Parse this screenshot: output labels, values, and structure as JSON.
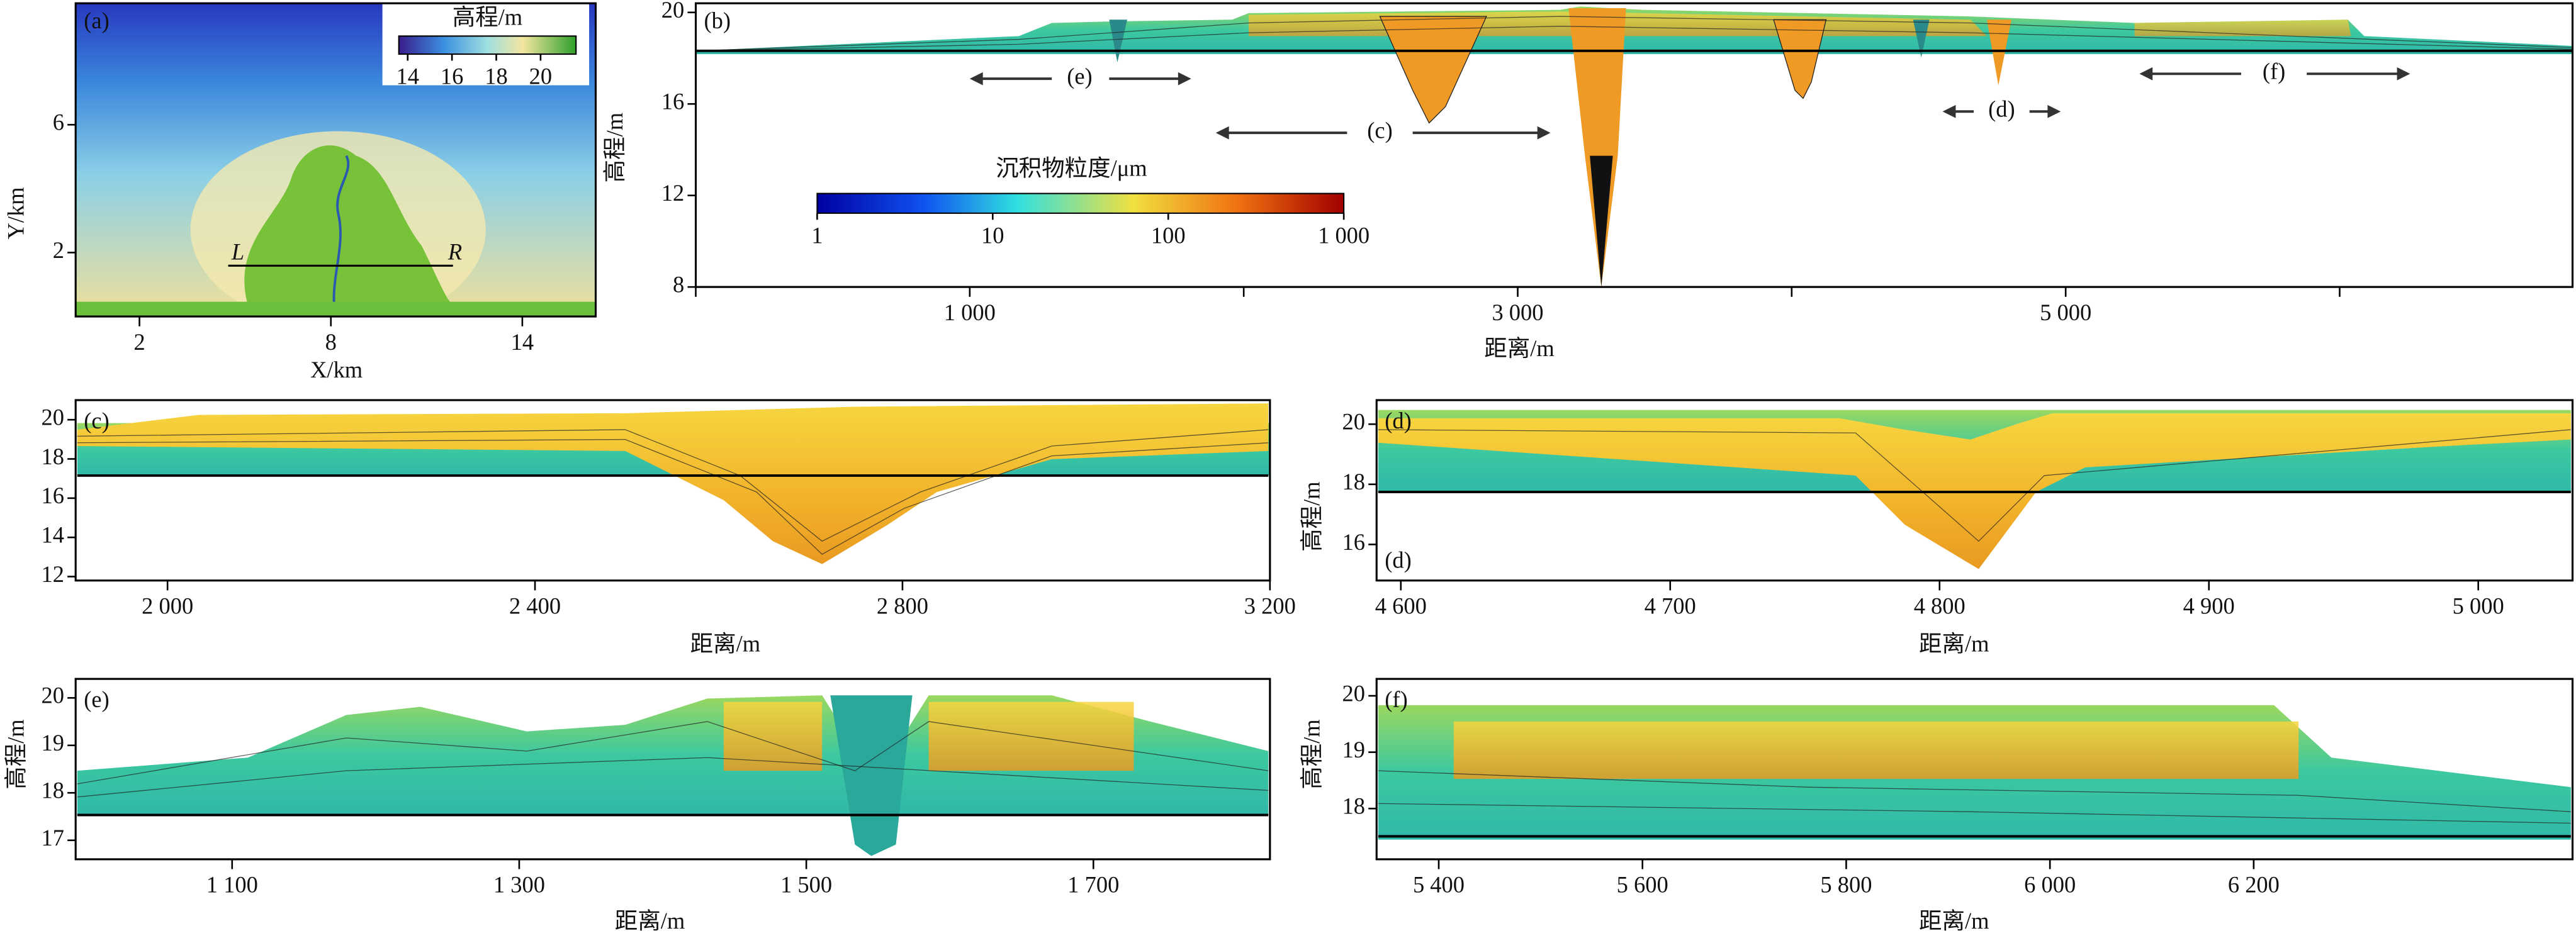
{
  "chart_data": [
    {
      "type": "map",
      "panel_label": "(a)",
      "xlabel": "X/km",
      "ylabel": "Y/km",
      "xlim": [
        0,
        16.3
      ],
      "ylim": [
        0,
        9.8
      ],
      "xticks": [
        2,
        8,
        14
      ],
      "yticks": [
        2,
        6
      ],
      "colorbar": {
        "title": "高程/m",
        "lim": [
          13.6,
          21.6
        ],
        "ticks": [
          14,
          16,
          18,
          20
        ]
      },
      "annotations": [
        "L",
        "R"
      ]
    },
    {
      "type": "section",
      "panel_label": "(b)",
      "xlabel": "距离/m",
      "ylabel": "高程/m",
      "xlim": [
        0,
        6850
      ],
      "ylim": [
        8,
        20.4
      ],
      "xticks": [
        {
          "value": 1000,
          "label": "1 000"
        },
        {
          "value": 3000,
          "label": "3 000"
        },
        {
          "value": 5000,
          "label": "5 000"
        }
      ],
      "xminorticks": [
        0,
        2000,
        4000,
        6000
      ],
      "yticks": [
        8,
        12,
        16,
        20
      ],
      "colorbar": {
        "title": "沉积物粒度/μm",
        "log": true,
        "lim": [
          1,
          1000
        ],
        "ticks": [
          1,
          10,
          100,
          {
            "value": 1000,
            "label": "1 000"
          }
        ]
      },
      "annotations": [
        "(e)",
        "(c)",
        "(d)",
        "(f)"
      ]
    },
    {
      "type": "section",
      "panel_label": "(c)",
      "xlabel": "距离/m",
      "xlim": [
        1900,
        3200
      ],
      "ylim": [
        11.8,
        21
      ],
      "xticks": [
        {
          "value": 2000,
          "label": "2 000"
        },
        {
          "value": 2400,
          "label": "2 400"
        },
        {
          "value": 2800,
          "label": "2 800"
        },
        {
          "value": 3200,
          "label": "3 200"
        }
      ],
      "yticks": [
        12,
        14,
        16,
        18,
        20
      ]
    },
    {
      "type": "section",
      "panel_label": "(d)",
      "xlabel": "距离/m",
      "ylabel": "高程/m",
      "xlim": [
        4591,
        5035
      ],
      "ylim": [
        14.8,
        20.8
      ],
      "xticks": [
        {
          "value": 4600,
          "label": "4 600"
        },
        {
          "value": 4700,
          "label": "4 700"
        },
        {
          "value": 4800,
          "label": "4 800"
        },
        {
          "value": 4900,
          "label": "4 900"
        },
        {
          "value": 5000,
          "label": "5 000"
        }
      ],
      "yticks": [
        16,
        18,
        20
      ],
      "annotations": [
        "(d)"
      ]
    },
    {
      "type": "section",
      "panel_label": "(e)",
      "xlabel": "距离/m",
      "ylabel": "高程/m",
      "xlim": [
        991,
        1823
      ],
      "ylim": [
        16.6,
        20.4
      ],
      "xticks": [
        {
          "value": 1100,
          "label": "1 100"
        },
        {
          "value": 1300,
          "label": "1 300"
        },
        {
          "value": 1500,
          "label": "1 500"
        },
        {
          "value": 1700,
          "label": "1 700"
        }
      ],
      "yticks": [
        17,
        18,
        19,
        20
      ]
    },
    {
      "type": "section",
      "panel_label": "(f)",
      "xlabel": "距离/m",
      "ylabel": "高程/m",
      "xlim": [
        5339,
        6513
      ],
      "ylim": [
        17.1,
        20.3
      ],
      "xticks": [
        {
          "value": 5400,
          "label": "5 400"
        },
        {
          "value": 5600,
          "label": "5 600"
        },
        {
          "value": 5800,
          "label": "5 800"
        },
        {
          "value": 6000,
          "label": "6 000"
        },
        {
          "value": 6200,
          "label": "6 200"
        }
      ],
      "yticks": [
        18,
        19,
        20
      ]
    }
  ]
}
